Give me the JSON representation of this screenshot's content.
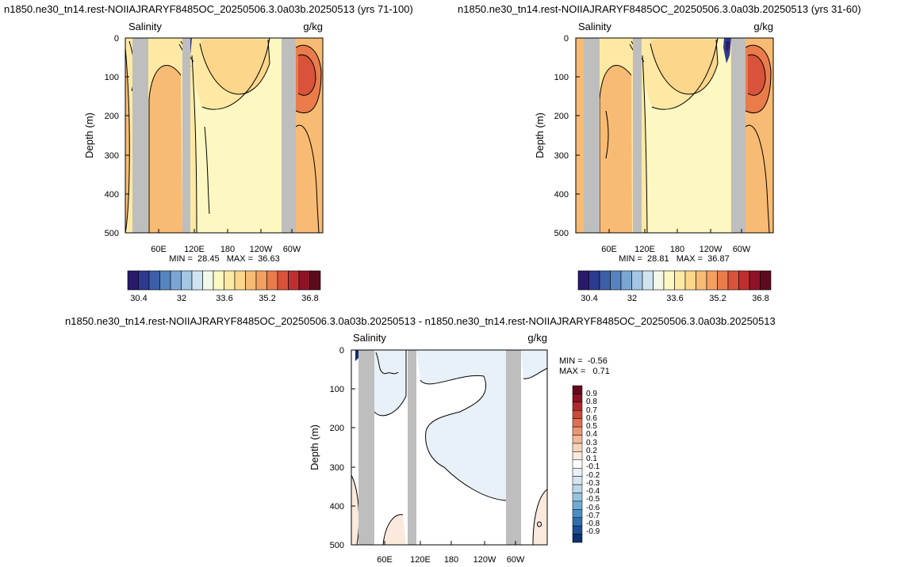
{
  "colors": {
    "land": "#bebebe",
    "salinity_scale": [
      "#2a1a6b",
      "#2e3a8f",
      "#3c5fa8",
      "#5584c0",
      "#7aa6d3",
      "#a3c6e2",
      "#cfe4ef",
      "#f2f8ea",
      "#fdf7c1",
      "#fde9a3",
      "#fcd68b",
      "#f8bb74",
      "#f39f60",
      "#ea7c4c",
      "#d9523a",
      "#bf2f2f",
      "#8e1328",
      "#5c0b1d"
    ],
    "diff_scale": [
      "#0e2f70",
      "#1c4e96",
      "#2f6eb0",
      "#4a8fc4",
      "#6fabd4",
      "#95c4df",
      "#b9d7e8",
      "#d5e6f1",
      "#e8f1f7",
      "#ffffff",
      "#fbe9dd",
      "#f7d3bd",
      "#f3b797",
      "#ec9672",
      "#df7053",
      "#cd4a3b",
      "#b02a2c",
      "#8a1222",
      "#670a1a"
    ]
  },
  "chart_data": [
    {
      "type": "heatmap",
      "panel": "top-left",
      "title": "n1850.ne30_tn14.rest-NOIIAJRARYF8485OC_20250506.3.0a03b.20250513 (yrs 71-100)",
      "left_label": "Salinity",
      "right_label": "g/kg",
      "ylabel": "Depth (m)",
      "ylim": [
        500,
        0
      ],
      "y_ticks": [
        "0",
        "100",
        "200",
        "300",
        "400",
        "500"
      ],
      "x_ticks": [
        "60E",
        "120E",
        "180",
        "120W",
        "60W"
      ],
      "stats": "MIN =  28.45   MAX =  36.63",
      "min": 28.45,
      "max": 36.63,
      "colorbar_labels": [
        "30.4",
        "32",
        "33.6",
        "35.2",
        "36.8"
      ]
    },
    {
      "type": "heatmap",
      "panel": "top-right",
      "title": "n1850.ne30_tn14.rest-NOIIAJRARYF8485OC_20250506.3.0a03b.20250513 (yrs 31-60)",
      "left_label": "Salinity",
      "right_label": "g/kg",
      "ylabel": "Depth (m)",
      "ylim": [
        500,
        0
      ],
      "y_ticks": [
        "0",
        "100",
        "200",
        "300",
        "400",
        "500"
      ],
      "x_ticks": [
        "60E",
        "120E",
        "180",
        "120W",
        "60W"
      ],
      "stats": "MIN =  28.81   MAX =  36.87",
      "min": 28.81,
      "max": 36.87,
      "colorbar_labels": [
        "30.4",
        "32",
        "33.6",
        "35.2",
        "36.8"
      ]
    },
    {
      "type": "heatmap",
      "panel": "bottom",
      "title": "n1850.ne30_tn14.rest-NOIIAJRARYF8485OC_20250506.3.0a03b.20250513 - n1850.ne30_tn14.rest-NOIIAJRARYF8485OC_20250506.3.0a03b.20250513",
      "left_label": "Salinity",
      "right_label": "g/kg",
      "ylabel": "Depth (m)",
      "ylim": [
        500,
        0
      ],
      "y_ticks": [
        "0",
        "100",
        "200",
        "300",
        "400",
        "500"
      ],
      "x_ticks": [
        "60E",
        "120E",
        "180",
        "120W",
        "60W"
      ],
      "stats_min": "MIN =  -0.56",
      "stats_max": "MAX =   0.71",
      "min": -0.56,
      "max": 0.71,
      "colorbar_labels": [
        "0.9",
        "0.8",
        "0.7",
        "0.6",
        "0.5",
        "0.4",
        "0.3",
        "0.2",
        "0.1",
        "-0.1",
        "-0.2",
        "-0.3",
        "-0.4",
        "-0.5",
        "-0.6",
        "-0.7",
        "-0.8",
        "-0.9"
      ]
    }
  ]
}
